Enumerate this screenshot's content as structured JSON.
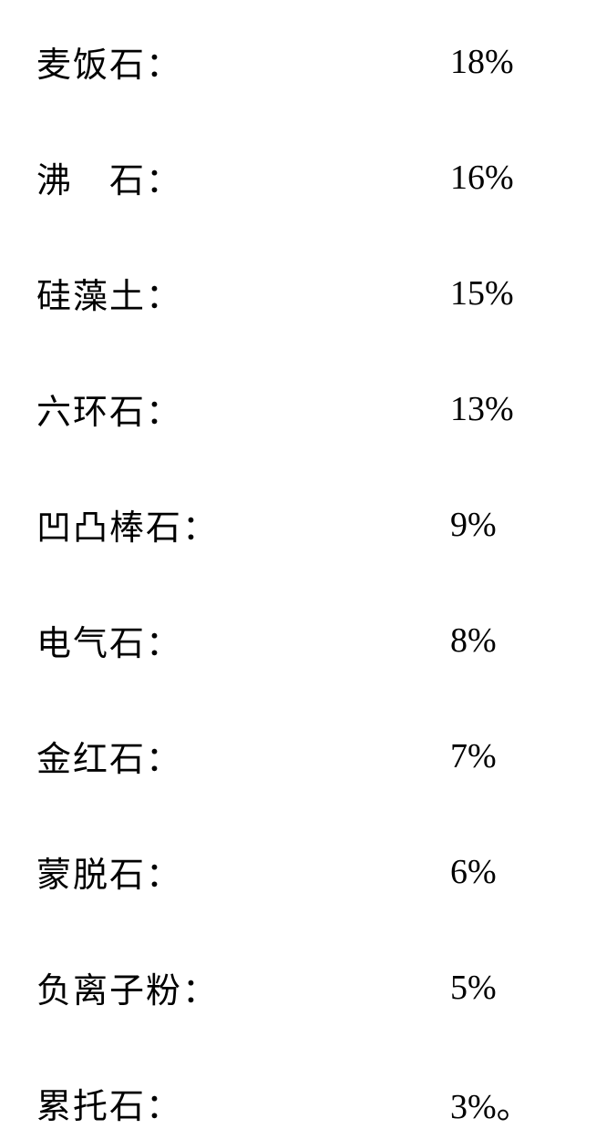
{
  "type": "table",
  "background_color": "#ffffff",
  "text_color": "#000000",
  "font_size": 38,
  "row_gap": 72,
  "rows": [
    {
      "label": "麦饭石：",
      "value": "18%"
    },
    {
      "label": "沸　石：",
      "value": "16%"
    },
    {
      "label": "硅藻土：",
      "value": "15%"
    },
    {
      "label": "六环石：",
      "value": "13%"
    },
    {
      "label": "凹凸棒石：",
      "value": "9%"
    },
    {
      "label": "电气石：",
      "value": "8%"
    },
    {
      "label": "金红石：",
      "value": "7%"
    },
    {
      "label": "蒙脱石：",
      "value": "6%"
    },
    {
      "label": "负离子粉：",
      "value": "5%"
    },
    {
      "label": "累托石：",
      "value": "3%。"
    }
  ]
}
